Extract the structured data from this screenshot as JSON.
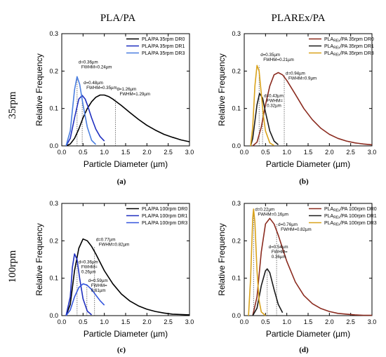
{
  "figure": {
    "column_titles": [
      "PLA/PA",
      "PLAREx/PA"
    ],
    "row_titles": [
      "35rpm",
      "100rpm"
    ]
  },
  "chart_data": [
    {
      "panel": "(a)",
      "type": "line",
      "xlabel": "Particle Diameter (µm)",
      "ylabel": "Relative Frequency",
      "xlim": [
        0,
        3.0
      ],
      "ylim": [
        0,
        0.3
      ],
      "xticks": [
        "0.0",
        "0.5",
        "1.0",
        "1.5",
        "2.0",
        "2.5",
        "3.0"
      ],
      "yticks": [
        "0.0",
        "0.1",
        "0.2",
        "0.3"
      ],
      "legend_position": "top-right",
      "series": [
        {
          "name": "PLA/PA 35rpm DR0",
          "color": "#000000",
          "x": [
            0.1,
            0.2,
            0.3,
            0.4,
            0.5,
            0.6,
            0.7,
            0.8,
            0.9,
            1.0,
            1.1,
            1.2,
            1.4,
            1.6,
            1.8,
            2.0,
            2.2,
            2.4,
            2.6,
            2.8,
            3.0
          ],
          "y": [
            0.0,
            0.005,
            0.02,
            0.045,
            0.075,
            0.1,
            0.118,
            0.13,
            0.136,
            0.136,
            0.132,
            0.125,
            0.108,
            0.089,
            0.071,
            0.055,
            0.042,
            0.031,
            0.023,
            0.016,
            0.011
          ]
        },
        {
          "name": "PLA/PA 35rpm DR1",
          "color": "#1f2fbf",
          "x": [
            0.1,
            0.2,
            0.3,
            0.4,
            0.48,
            0.55,
            0.6,
            0.7,
            0.8,
            0.9,
            1.0
          ],
          "y": [
            0.0,
            0.02,
            0.075,
            0.125,
            0.135,
            0.125,
            0.11,
            0.075,
            0.045,
            0.025,
            0.013
          ]
        },
        {
          "name": "PLA/PA 35rpm DR3",
          "color": "#4a7ee0",
          "x": [
            0.1,
            0.2,
            0.3,
            0.36,
            0.42,
            0.5,
            0.6,
            0.7,
            0.8
          ],
          "y": [
            0.0,
            0.04,
            0.15,
            0.185,
            0.165,
            0.11,
            0.05,
            0.015,
            0.004
          ]
        }
      ],
      "annotations": [
        {
          "text": "d=0.36µm",
          "text2": "FWHM=0.24µm",
          "at": [
            0.36,
            0.22
          ]
        },
        {
          "text": "d=0.48µm",
          "text2": "FWHM=0.35µm",
          "at": [
            0.48,
            0.165
          ]
        },
        {
          "text": "d=1.26µm",
          "text2": "FWHM=1.29µm",
          "at": [
            1.26,
            0.148
          ]
        }
      ],
      "markers_x": [
        0.36,
        0.48,
        1.26
      ],
      "marker_tops": [
        0.185,
        0.135,
        0.125
      ]
    },
    {
      "panel": "(b)",
      "type": "line",
      "xlabel": "Particle Diameter (µm)",
      "ylabel": "Relative Frequency",
      "xlim": [
        0,
        3.0
      ],
      "ylim": [
        0,
        0.3
      ],
      "xticks": [
        "0.0",
        "0.5",
        "1.0",
        "1.5",
        "2.0",
        "2.5",
        "3.0"
      ],
      "yticks": [
        "0.0",
        "0.1",
        "0.2",
        "0.3"
      ],
      "legend_position": "top-right",
      "series": [
        {
          "name": "PLAREx/PA 35rpm DR0",
          "color": "#8b2b1f",
          "x": [
            0.2,
            0.3,
            0.4,
            0.5,
            0.6,
            0.7,
            0.8,
            0.9,
            1.0,
            1.2,
            1.4,
            1.6,
            1.8,
            2.0,
            2.2,
            2.4,
            2.6,
            2.8,
            3.0
          ],
          "y": [
            0.0,
            0.01,
            0.05,
            0.11,
            0.16,
            0.19,
            0.196,
            0.19,
            0.175,
            0.138,
            0.1,
            0.07,
            0.047,
            0.031,
            0.02,
            0.013,
            0.008,
            0.005,
            0.003
          ]
        },
        {
          "name": "PLAREx/PA 35rpm DR1",
          "color": "#1a1a1a",
          "x": [
            0.15,
            0.2,
            0.3,
            0.36,
            0.43,
            0.5,
            0.6,
            0.7,
            0.8
          ],
          "y": [
            0.0,
            0.02,
            0.11,
            0.14,
            0.128,
            0.09,
            0.04,
            0.013,
            0.003
          ]
        },
        {
          "name": "PLAREx/PA 35rpm DR3",
          "color": "#d9a21b",
          "x": [
            0.15,
            0.2,
            0.25,
            0.3,
            0.35,
            0.4,
            0.45,
            0.5,
            0.6,
            0.7
          ],
          "y": [
            0.0,
            0.05,
            0.16,
            0.215,
            0.2,
            0.14,
            0.08,
            0.04,
            0.008,
            0.001
          ]
        }
      ],
      "annotations": [
        {
          "text": "d=0.35µm",
          "text2": "FWHM=0.21µm",
          "at": [
            0.35,
            0.24
          ]
        },
        {
          "text": "d=0.94µm",
          "text2": "FWHM=0.9µm",
          "at": [
            0.94,
            0.19
          ]
        },
        {
          "text": "d=0.43µm",
          "text2": "FWHM=",
          "text3": "0.32µm",
          "at": [
            0.43,
            0.13
          ]
        }
      ],
      "markers_x": [
        0.35,
        0.43,
        0.94
      ],
      "marker_tops": [
        0.215,
        0.128,
        0.19
      ]
    },
    {
      "panel": "(c)",
      "type": "line",
      "xlabel": "Particle Diameter (µm)",
      "ylabel": "Relative Frequency",
      "xlim": [
        0,
        3.0
      ],
      "ylim": [
        0,
        0.3
      ],
      "xticks": [
        "0.0",
        "0.5",
        "1.0",
        "1.5",
        "2.0",
        "2.5",
        "3.0"
      ],
      "yticks": [
        "0.0",
        "0.1",
        "0.2",
        "0.3"
      ],
      "legend_position": "top-right",
      "series": [
        {
          "name": "PLA/PA 100rpm DR0",
          "color": "#000000",
          "x": [
            0.1,
            0.2,
            0.3,
            0.4,
            0.5,
            0.6,
            0.7,
            0.8,
            1.0,
            1.2,
            1.4,
            1.6,
            1.8,
            2.0,
            2.2,
            2.4,
            2.6,
            2.8,
            3.0
          ],
          "y": [
            0.0,
            0.03,
            0.12,
            0.18,
            0.205,
            0.2,
            0.185,
            0.165,
            0.12,
            0.085,
            0.058,
            0.039,
            0.026,
            0.017,
            0.011,
            0.007,
            0.004,
            0.003,
            0.002
          ]
        },
        {
          "name": "PLA/PA 100rpm DR1",
          "color": "#1f2fbf",
          "x": [
            0.1,
            0.2,
            0.25,
            0.3,
            0.36,
            0.42,
            0.5,
            0.6,
            0.7
          ],
          "y": [
            0.0,
            0.05,
            0.13,
            0.165,
            0.15,
            0.1,
            0.045,
            0.012,
            0.002
          ]
        },
        {
          "name": "PLA/PA 100rpm DR3",
          "color": "#3355dd",
          "x": [
            0.1,
            0.2,
            0.3,
            0.4,
            0.5,
            0.59,
            0.7,
            0.8,
            0.9,
            1.0
          ],
          "y": [
            0.0,
            0.015,
            0.05,
            0.075,
            0.085,
            0.082,
            0.07,
            0.055,
            0.04,
            0.028
          ]
        }
      ],
      "annotations": [
        {
          "text": "d=0.77µm",
          "text2": "FWHM=0.82µm",
          "at": [
            0.77,
            0.2
          ]
        },
        {
          "text": "d=0.36µm",
          "text2": "FWHM=",
          "text3": "0.26µm",
          "at": [
            0.36,
            0.14
          ]
        },
        {
          "text": "d=0.59µm",
          "text2": "FWHM=",
          "text3": "0.61µm",
          "at": [
            0.59,
            0.09
          ]
        }
      ],
      "markers_x": [
        0.36,
        0.59,
        0.77
      ],
      "marker_tops": [
        0.15,
        0.082,
        0.185
      ]
    },
    {
      "panel": "(d)",
      "type": "line",
      "xlabel": "Particle Diameter (µm)",
      "ylabel": "Relative Frequency",
      "xlim": [
        0,
        3.0
      ],
      "ylim": [
        0,
        0.3
      ],
      "xticks": [
        "0.0",
        "0.5",
        "1.0",
        "1.5",
        "2.0",
        "2.5",
        "3.0"
      ],
      "yticks": [
        "0.0",
        "0.1",
        "0.2",
        "0.3"
      ],
      "legend_position": "top-right",
      "series": [
        {
          "name": "PLAREx/PA 100rpm DR0",
          "color": "#8b2b1f",
          "x": [
            0.2,
            0.3,
            0.4,
            0.5,
            0.6,
            0.7,
            0.8,
            0.9,
            1.0,
            1.2,
            1.4,
            1.6,
            1.8,
            2.0,
            2.2,
            2.4,
            2.6,
            2.8,
            3.0
          ],
          "y": [
            0.0,
            0.05,
            0.17,
            0.245,
            0.26,
            0.245,
            0.215,
            0.18,
            0.145,
            0.09,
            0.054,
            0.032,
            0.019,
            0.011,
            0.006,
            0.004,
            0.002,
            0.001,
            0.001
          ]
        },
        {
          "name": "PLAREx/PA 100rpm DR1",
          "color": "#1a1a1a",
          "x": [
            0.2,
            0.3,
            0.4,
            0.5,
            0.54,
            0.6,
            0.7,
            0.8,
            0.9
          ],
          "y": [
            0.0,
            0.02,
            0.08,
            0.12,
            0.125,
            0.115,
            0.07,
            0.03,
            0.008
          ]
        },
        {
          "name": "PLAREx/PA 100rpm DR3",
          "color": "#d9a21b",
          "x": [
            0.1,
            0.15,
            0.2,
            0.22,
            0.25,
            0.3,
            0.35,
            0.4,
            0.5
          ],
          "y": [
            0.0,
            0.1,
            0.26,
            0.285,
            0.25,
            0.12,
            0.04,
            0.01,
            0.0
          ]
        }
      ],
      "annotations": [
        {
          "text": "d=0.22µm",
          "text2": "FWHM=0.16µm",
          "at": [
            0.22,
            0.28
          ]
        },
        {
          "text": "d=0.76µm",
          "text2": "FWHM=0.82µm",
          "at": [
            0.76,
            0.24
          ]
        },
        {
          "text": "d=0.54µm",
          "text2": "FWHM=",
          "text3": "0.36µm",
          "at": [
            0.54,
            0.18
          ]
        }
      ],
      "markers_x": [
        0.22,
        0.54,
        0.76
      ],
      "marker_tops": [
        0.285,
        0.125,
        0.245
      ]
    }
  ]
}
